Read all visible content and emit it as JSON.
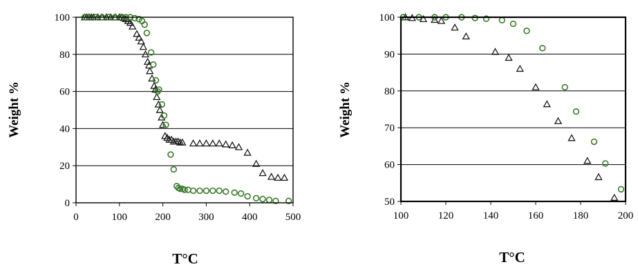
{
  "colors": {
    "triangle": "#1a1a1a",
    "circle": "#3a7a2a",
    "axis": "#000000"
  },
  "chart_data": [
    {
      "type": "scatter",
      "xlabel": "T°C",
      "ylabel": "Weight %",
      "xlim": [
        0,
        500
      ],
      "ylim": [
        0,
        100
      ],
      "xticks": [
        "0",
        "100",
        "200",
        "300",
        "400",
        "500"
      ],
      "yticks": [
        "0",
        "20",
        "40",
        "60",
        "80",
        "100"
      ],
      "grid": "horizontal",
      "series": [
        {
          "marker": "triangle",
          "color": "#1a1a1a",
          "points": [
            [
              20,
              100
            ],
            [
              25,
              100
            ],
            [
              30,
              100
            ],
            [
              35,
              100
            ],
            [
              40,
              100
            ],
            [
              50,
              100
            ],
            [
              60,
              100
            ],
            [
              70,
              100
            ],
            [
              80,
              100
            ],
            [
              90,
              100
            ],
            [
              100,
              100
            ],
            [
              105,
              100
            ],
            [
              110,
              99.5
            ],
            [
              115,
              99
            ],
            [
              120,
              98
            ],
            [
              125,
              97
            ],
            [
              130,
              95
            ],
            [
              140,
              91
            ],
            [
              145,
              89
            ],
            [
              150,
              87
            ],
            [
              155,
              84
            ],
            [
              160,
              80
            ],
            [
              165,
              76
            ],
            [
              168,
              74
            ],
            [
              170,
              71
            ],
            [
              175,
              67
            ],
            [
              180,
              63
            ],
            [
              183,
              61
            ],
            [
              186,
              57
            ],
            [
              190,
              53
            ],
            [
              193,
              50
            ],
            [
              197,
              46
            ],
            [
              200,
              42
            ],
            [
              205,
              36
            ],
            [
              210,
              35
            ],
            [
              215,
              34
            ],
            [
              220,
              34
            ],
            [
              225,
              33
            ],
            [
              230,
              33
            ],
            [
              235,
              33
            ],
            [
              240,
              32.5
            ],
            [
              245,
              32.5
            ],
            [
              270,
              32
            ],
            [
              285,
              32
            ],
            [
              300,
              32
            ],
            [
              315,
              32
            ],
            [
              330,
              32
            ],
            [
              345,
              31.5
            ],
            [
              360,
              31
            ],
            [
              375,
              30
            ],
            [
              395,
              27
            ],
            [
              415,
              21
            ],
            [
              430,
              16
            ],
            [
              450,
              14
            ],
            [
              465,
              13.5
            ],
            [
              480,
              13.5
            ]
          ]
        },
        {
          "marker": "circle",
          "color": "#3a7a2a",
          "points": [
            [
              20,
              100
            ],
            [
              30,
              100
            ],
            [
              45,
              100
            ],
            [
              60,
              100
            ],
            [
              75,
              100
            ],
            [
              90,
              100
            ],
            [
              105,
              100
            ],
            [
              115,
              100
            ],
            [
              125,
              100
            ],
            [
              135,
              99.5
            ],
            [
              145,
              99
            ],
            [
              152,
              98
            ],
            [
              158,
              96
            ],
            [
              163,
              91.5
            ],
            [
              173,
              81
            ],
            [
              178,
              74.5
            ],
            [
              184,
              66
            ],
            [
              188,
              60
            ],
            [
              191,
              61
            ],
            [
              198,
              53
            ],
            [
              203,
              47
            ],
            [
              207,
              42
            ],
            [
              218,
              26
            ],
            [
              225,
              18
            ],
            [
              232,
              9
            ],
            [
              236,
              8
            ],
            [
              240,
              7.5
            ],
            [
              245,
              7.5
            ],
            [
              250,
              7
            ],
            [
              258,
              7
            ],
            [
              270,
              6.5
            ],
            [
              285,
              6.5
            ],
            [
              300,
              6.5
            ],
            [
              315,
              6.5
            ],
            [
              330,
              6.5
            ],
            [
              345,
              6
            ],
            [
              365,
              5.5
            ],
            [
              380,
              5
            ],
            [
              395,
              3.5
            ],
            [
              415,
              2.5
            ],
            [
              430,
              2
            ],
            [
              445,
              1.5
            ],
            [
              460,
              1
            ],
            [
              490,
              1
            ]
          ]
        }
      ]
    },
    {
      "type": "scatter",
      "xlabel": "T°C",
      "ylabel": "Weight %",
      "xlim": [
        100,
        200
      ],
      "ylim": [
        50,
        100
      ],
      "xticks": [
        "100",
        "120",
        "140",
        "160",
        "180",
        "200"
      ],
      "yticks": [
        "50",
        "60",
        "70",
        "80",
        "90",
        "100"
      ],
      "grid": "horizontal",
      "series": [
        {
          "marker": "triangle",
          "color": "#1a1a1a",
          "points": [
            [
              102,
              100
            ],
            [
              105,
              99.8
            ],
            [
              110,
              99.5
            ],
            [
              115,
              99.3
            ],
            [
              118,
              99
            ],
            [
              124,
              97.2
            ],
            [
              129,
              94.8
            ],
            [
              142,
              90.6
            ],
            [
              148,
              89
            ],
            [
              153,
              86
            ],
            [
              160,
              81
            ],
            [
              165,
              76.4
            ],
            [
              170,
              71.8
            ],
            [
              176,
              67.2
            ],
            [
              183,
              61
            ],
            [
              188,
              56.6
            ],
            [
              195,
              51
            ]
          ]
        },
        {
          "marker": "circle",
          "color": "#3a7a2a",
          "points": [
            [
              101,
              100
            ],
            [
              108,
              100
            ],
            [
              115,
              100
            ],
            [
              120,
              100
            ],
            [
              127,
              100
            ],
            [
              133,
              99.8
            ],
            [
              138,
              99.6
            ],
            [
              145,
              99.2
            ],
            [
              150,
              98.2
            ],
            [
              156,
              96.3
            ],
            [
              163,
              91.6
            ],
            [
              173,
              81
            ],
            [
              178,
              74.4
            ],
            [
              186,
              66.2
            ],
            [
              191,
              60.3
            ],
            [
              198,
              53.3
            ]
          ]
        }
      ]
    }
  ]
}
